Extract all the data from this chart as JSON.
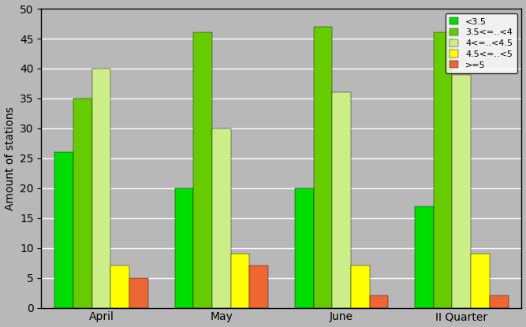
{
  "categories": [
    "April",
    "May",
    "June",
    "II Quarter"
  ],
  "series": [
    {
      "label": "<3.5",
      "color": "#00dd00",
      "values": [
        26,
        20,
        20,
        17
      ]
    },
    {
      "label": "3.5<=..<4",
      "color": "#66cc00",
      "values": [
        35,
        46,
        47,
        46
      ]
    },
    {
      "label": "4<=..<4.5",
      "color": "#ccee88",
      "values": [
        40,
        30,
        36,
        39
      ]
    },
    {
      "label": "4.5<=..<5",
      "color": "#ffff00",
      "values": [
        7,
        9,
        7,
        9
      ]
    },
    {
      "label": ">=5",
      "color": "#ee6633",
      "values": [
        5,
        7,
        2,
        2
      ]
    }
  ],
  "ylabel": "Amount of stations",
  "ylim": [
    0,
    50
  ],
  "yticks": [
    0,
    5,
    10,
    15,
    20,
    25,
    30,
    35,
    40,
    45,
    50
  ],
  "background_color": "#b8b8b8",
  "grid_color": "#ffffff",
  "bar_width": 0.14,
  "group_centers": [
    0.4,
    1.3,
    2.2,
    3.1
  ],
  "legend_fontsize": 8,
  "axis_fontsize": 10,
  "figsize": [
    6.67,
    4.15
  ],
  "dpi": 100
}
